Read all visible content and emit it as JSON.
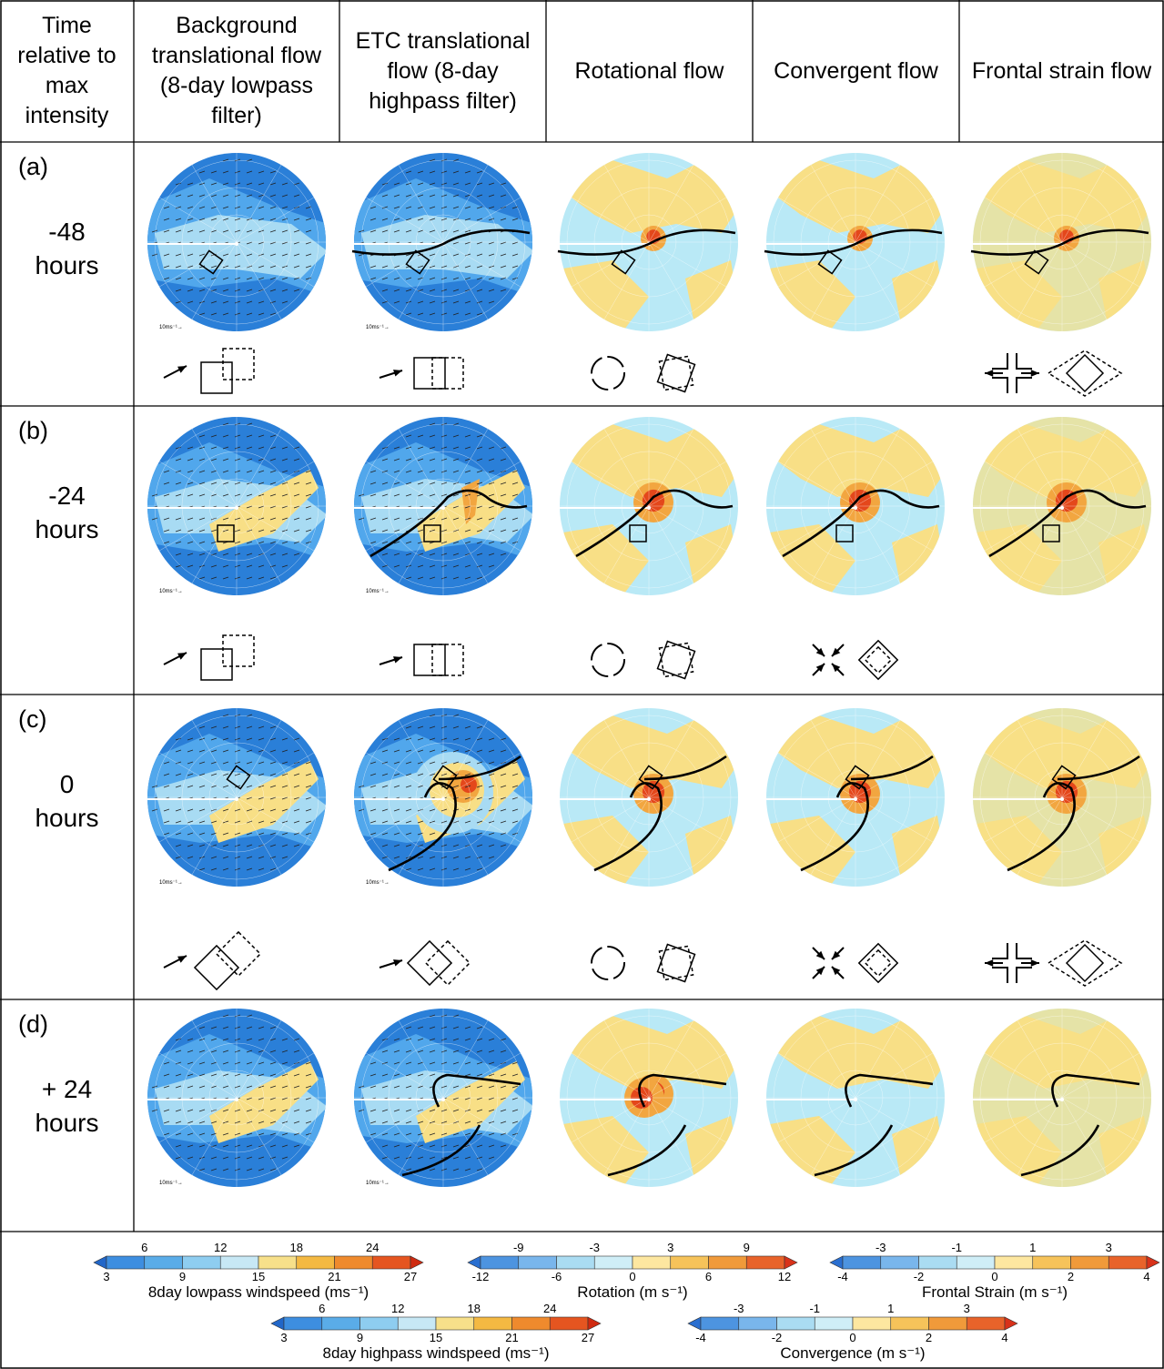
{
  "headers": [
    "Time relative to  max intensity",
    "Background translational flow (8-day lowpass filter)",
    "ETC translational flow (8-day highpass filter)",
    "Rotational flow",
    "Convergent flow",
    "Frontal strain flow"
  ],
  "rows": [
    {
      "label": "(a)",
      "time_line1": "-48",
      "time_line2": "hours"
    },
    {
      "label": "(b)",
      "time_line1": "-24",
      "time_line2": "hours"
    },
    {
      "label": "(c)",
      "time_line1": "0",
      "time_line2": "hours"
    },
    {
      "label": "(d)",
      "time_line1": "+ 24",
      "time_line2": "hours"
    }
  ],
  "vector_scale_label": "10ms⁻¹→",
  "colorbars": [
    {
      "id": "lowpass",
      "label": "8day lowpass windspeed (ms⁻¹)",
      "upper_ticks": [
        "6",
        "12",
        "18",
        "24"
      ],
      "lower_ticks": [
        "3",
        "9",
        "15",
        "21",
        "27"
      ]
    },
    {
      "id": "highpass",
      "label": "8day highpass windspeed (ms⁻¹)",
      "upper_ticks": [
        "6",
        "12",
        "18",
        "24"
      ],
      "lower_ticks": [
        "3",
        "9",
        "15",
        "21",
        "27"
      ]
    },
    {
      "id": "rotation",
      "label": "Rotation (m s⁻¹)",
      "upper_ticks": [
        "-9",
        "-3",
        "3",
        "9"
      ],
      "lower_ticks": [
        "-12",
        "-6",
        "0",
        "6",
        "12"
      ]
    },
    {
      "id": "convergence",
      "label": "Convergence (m s⁻¹)",
      "upper_ticks": [
        "-3",
        "-1",
        "1",
        "3"
      ],
      "lower_ticks": [
        "-4",
        "-2",
        "0",
        "2",
        "4"
      ]
    },
    {
      "id": "frontal",
      "label": "Frontal Strain (m s⁻¹)",
      "upper_ticks": [
        "-3",
        "-1",
        "1",
        "3"
      ],
      "lower_ticks": [
        "-4",
        "-2",
        "0",
        "2",
        "4"
      ]
    }
  ],
  "colors": {
    "wind_scale": [
      "#2166c8",
      "#3d8ee0",
      "#5aace8",
      "#8ecdf0",
      "#c7e8f5",
      "#f7e08a",
      "#f4b942",
      "#ef8a2d",
      "#e55520",
      "#cf2a10"
    ],
    "div_scale": [
      "#2a6fd0",
      "#4d94e0",
      "#79b6ec",
      "#aadcf2",
      "#cfeef7",
      "#fde7a0",
      "#f6c35a",
      "#f09a3a",
      "#e8632a",
      "#d8321a"
    ],
    "plot_blue_dark": "#2a7fd8",
    "plot_blue_mid": "#51a7ec",
    "plot_blue_light": "#a8dbf3",
    "plot_cyan": "#b9e9f6",
    "plot_yellow": "#f8df86",
    "plot_orange": "#f2a640",
    "plot_red": "#e4471b"
  }
}
